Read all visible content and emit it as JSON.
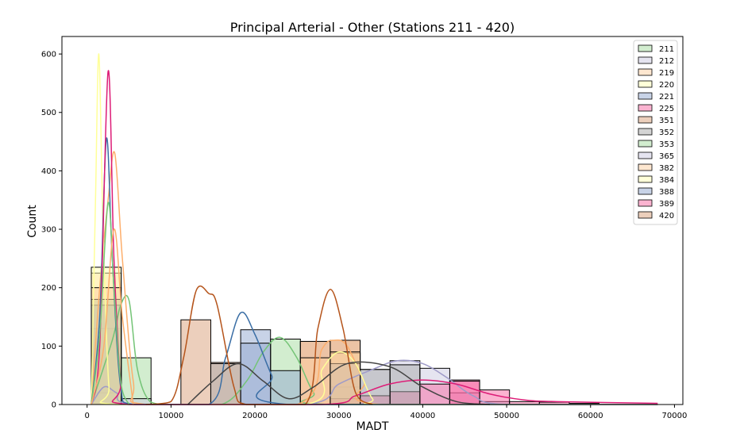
{
  "chart_data": {
    "type": "histogram",
    "title": "Principal Arterial - Other (Stations 211 - 420)",
    "xlabel": "MADT",
    "ylabel": "Count",
    "xlim": [
      -3000,
      71000
    ],
    "ylim": [
      0,
      630
    ],
    "xticks": [
      0,
      10000,
      20000,
      30000,
      40000,
      50000,
      60000,
      70000
    ],
    "xtick_labels": [
      "0",
      "10000",
      "20000",
      "30000",
      "40000",
      "50000",
      "60000",
      "70000"
    ],
    "yticks": [
      0,
      100,
      200,
      300,
      400,
      500,
      600
    ],
    "ytick_labels": [
      "0",
      "100",
      "200",
      "300",
      "400",
      "500",
      "600"
    ],
    "grid": false,
    "legend_position": "top-right",
    "bin_edges": [
      500,
      4060,
      7620,
      11180,
      14740,
      18300,
      21860,
      25420,
      28980,
      32540,
      36100,
      39660,
      43220,
      46780,
      50340,
      53900,
      57460,
      61020,
      64580,
      68140
    ],
    "series": [
      {
        "name": "211",
        "color": "#a6dba0",
        "counts": [
          130,
          80,
          0,
          0,
          0,
          0,
          112,
          0,
          0,
          0,
          0,
          0,
          0,
          0,
          0,
          0,
          0,
          0,
          0
        ],
        "kde": [
          [
            500,
            0
          ],
          [
            3000,
            110
          ],
          [
            4000,
            170
          ],
          [
            5000,
            178
          ],
          [
            6000,
            60
          ],
          [
            7500,
            5
          ],
          [
            10000,
            0
          ],
          [
            16000,
            0
          ],
          [
            19000,
            40
          ],
          [
            21000,
            90
          ],
          [
            23000,
            115
          ],
          [
            25000,
            80
          ],
          [
            27000,
            20
          ],
          [
            29000,
            0
          ],
          [
            68000,
            0
          ]
        ]
      },
      {
        "name": "212",
        "color": "#cbc9e2",
        "counts": [
          20,
          10,
          0,
          0,
          0,
          0,
          0,
          0,
          30,
          60,
          75,
          62,
          20,
          5,
          0,
          0,
          0,
          0,
          0
        ],
        "kde": [
          [
            500,
            0
          ],
          [
            2000,
            30
          ],
          [
            3500,
            20
          ],
          [
            6000,
            0
          ],
          [
            26000,
            0
          ],
          [
            30000,
            35
          ],
          [
            34000,
            60
          ],
          [
            37000,
            75
          ],
          [
            40000,
            70
          ],
          [
            43000,
            45
          ],
          [
            46000,
            15
          ],
          [
            50000,
            0
          ],
          [
            68000,
            0
          ]
        ]
      },
      {
        "name": "219",
        "color": "#fdd0a2",
        "counts": [
          225,
          0,
          0,
          0,
          0,
          0,
          0,
          108,
          110,
          0,
          0,
          0,
          0,
          0,
          0,
          0,
          0,
          0,
          0
        ],
        "kde": [
          [
            500,
            0
          ],
          [
            1500,
            200
          ],
          [
            2500,
            350
          ],
          [
            3300,
            430
          ],
          [
            4200,
            250
          ],
          [
            5500,
            40
          ],
          [
            7000,
            0
          ],
          [
            25000,
            0
          ],
          [
            28000,
            95
          ],
          [
            29500,
            110
          ],
          [
            31000,
            100
          ],
          [
            33000,
            40
          ],
          [
            35000,
            0
          ],
          [
            68000,
            0
          ]
        ]
      },
      {
        "name": "220",
        "color": "#ffffb3",
        "counts": [
          235,
          0,
          0,
          0,
          0,
          0,
          0,
          0,
          88,
          0,
          0,
          0,
          0,
          0,
          0,
          0,
          0,
          0,
          0
        ],
        "kde": [
          [
            500,
            0
          ],
          [
            1000,
            350
          ],
          [
            1400,
            600
          ],
          [
            1900,
            300
          ],
          [
            2600,
            30
          ],
          [
            3500,
            0
          ],
          [
            26000,
            0
          ],
          [
            28000,
            60
          ],
          [
            30000,
            90
          ],
          [
            32000,
            70
          ],
          [
            34000,
            10
          ],
          [
            36000,
            0
          ],
          [
            68000,
            0
          ]
        ]
      },
      {
        "name": "221",
        "color": "#92a8cf",
        "counts": [
          170,
          0,
          0,
          0,
          0,
          128,
          58,
          0,
          0,
          0,
          0,
          0,
          0,
          0,
          0,
          0,
          0,
          0,
          0
        ],
        "kde": [
          [
            500,
            0
          ],
          [
            1500,
            150
          ],
          [
            2300,
            455
          ],
          [
            3000,
            250
          ],
          [
            4000,
            30
          ],
          [
            5500,
            0
          ],
          [
            14500,
            0
          ],
          [
            16500,
            80
          ],
          [
            18300,
            157
          ],
          [
            20000,
            120
          ],
          [
            22000,
            50
          ],
          [
            24000,
            0
          ],
          [
            68000,
            0
          ]
        ]
      },
      {
        "name": "225",
        "color": "#f768a1",
        "counts": [
          0,
          0,
          0,
          0,
          0,
          0,
          0,
          0,
          10,
          15,
          22,
          35,
          42,
          25,
          5,
          4,
          2,
          0,
          0
        ],
        "kde": [
          [
            500,
            0
          ],
          [
            1500,
            100
          ],
          [
            2500,
            570
          ],
          [
            3200,
            250
          ],
          [
            4000,
            40
          ],
          [
            5000,
            0
          ],
          [
            28000,
            0
          ],
          [
            32000,
            15
          ],
          [
            36000,
            35
          ],
          [
            40000,
            42
          ],
          [
            44000,
            35
          ],
          [
            48000,
            18
          ],
          [
            52000,
            8
          ],
          [
            56000,
            5
          ],
          [
            68000,
            2
          ]
        ]
      },
      {
        "name": "351",
        "color": "#d9a07a",
        "counts": [
          0,
          0,
          0,
          145,
          72,
          0,
          0,
          108,
          110,
          0,
          0,
          0,
          0,
          0,
          0,
          0,
          0,
          0,
          0
        ],
        "kde": [
          [
            7000,
            0
          ],
          [
            10000,
            5
          ],
          [
            11500,
            80
          ],
          [
            13000,
            195
          ],
          [
            14500,
            190
          ],
          [
            15500,
            170
          ],
          [
            17500,
            30
          ],
          [
            19000,
            0
          ],
          [
            26000,
            0
          ],
          [
            27500,
            130
          ],
          [
            29000,
            197
          ],
          [
            30500,
            130
          ],
          [
            32000,
            20
          ],
          [
            34000,
            0
          ]
        ]
      },
      {
        "name": "352",
        "color": "#a9a9a9",
        "counts": [
          0,
          0,
          0,
          0,
          70,
          0,
          0,
          0,
          70,
          60,
          68,
          0,
          0,
          0,
          0,
          0,
          0,
          0,
          0
        ],
        "kde": [
          [
            12000,
            0
          ],
          [
            15000,
            40
          ],
          [
            18000,
            70
          ],
          [
            21000,
            40
          ],
          [
            24000,
            10
          ],
          [
            27000,
            30
          ],
          [
            31000,
            70
          ],
          [
            36000,
            65
          ],
          [
            40000,
            30
          ],
          [
            44000,
            5
          ],
          [
            48000,
            0
          ]
        ]
      },
      {
        "name": "353",
        "color": "#a6dba0",
        "counts": [
          180,
          0,
          0,
          0,
          0,
          0,
          0,
          0,
          0,
          0,
          0,
          0,
          0,
          0,
          0,
          0,
          0,
          0,
          0
        ],
        "kde": [
          [
            500,
            0
          ],
          [
            1500,
            120
          ],
          [
            2500,
            345
          ],
          [
            3200,
            200
          ],
          [
            4000,
            40
          ],
          [
            5000,
            0
          ]
        ]
      },
      {
        "name": "365",
        "color": "#cbc9e2",
        "counts": [
          0,
          0,
          0,
          0,
          0,
          0,
          0,
          0,
          0,
          0,
          0,
          0,
          0,
          0,
          0,
          0,
          0,
          0,
          0
        ],
        "kde": []
      },
      {
        "name": "382",
        "color": "#fdd0a2",
        "counts": [
          200,
          0,
          0,
          0,
          0,
          0,
          0,
          80,
          90,
          0,
          0,
          0,
          0,
          0,
          0,
          0,
          0,
          0,
          0
        ],
        "kde": [
          [
            500,
            0
          ],
          [
            2000,
            100
          ],
          [
            3200,
            300
          ],
          [
            4200,
            150
          ],
          [
            5500,
            0
          ]
        ]
      },
      {
        "name": "384",
        "color": "#ffffb3",
        "counts": [
          0,
          0,
          0,
          0,
          0,
          0,
          0,
          0,
          0,
          0,
          0,
          0,
          0,
          0,
          0,
          0,
          0,
          0,
          0
        ],
        "kde": []
      },
      {
        "name": "388",
        "color": "#92a8cf",
        "counts": [
          0,
          0,
          0,
          0,
          0,
          105,
          0,
          0,
          0,
          0,
          0,
          0,
          0,
          0,
          0,
          0,
          0,
          0,
          0
        ],
        "kde": []
      },
      {
        "name": "389",
        "color": "#f768a1",
        "counts": [
          0,
          0,
          0,
          0,
          0,
          0,
          0,
          0,
          0,
          0,
          0,
          0,
          40,
          0,
          0,
          0,
          0,
          0,
          0
        ],
        "kde": []
      },
      {
        "name": "420",
        "color": "#d9a07a",
        "counts": [
          0,
          0,
          0,
          0,
          0,
          0,
          0,
          0,
          0,
          0,
          0,
          0,
          0,
          0,
          0,
          0,
          0,
          0,
          0
        ],
        "kde": []
      }
    ],
    "kde_colors": [
      "#74c476",
      "#9e9ac8",
      "#fdae6b",
      "#ffff99",
      "#3a6ea5",
      "#dd1c77",
      "#b5541b",
      "#444444",
      "#74c476",
      "#9e9ac8",
      "#fdae6b",
      "#ffff99",
      "#3a6ea5",
      "#dd1c77",
      "#b5541b"
    ]
  }
}
